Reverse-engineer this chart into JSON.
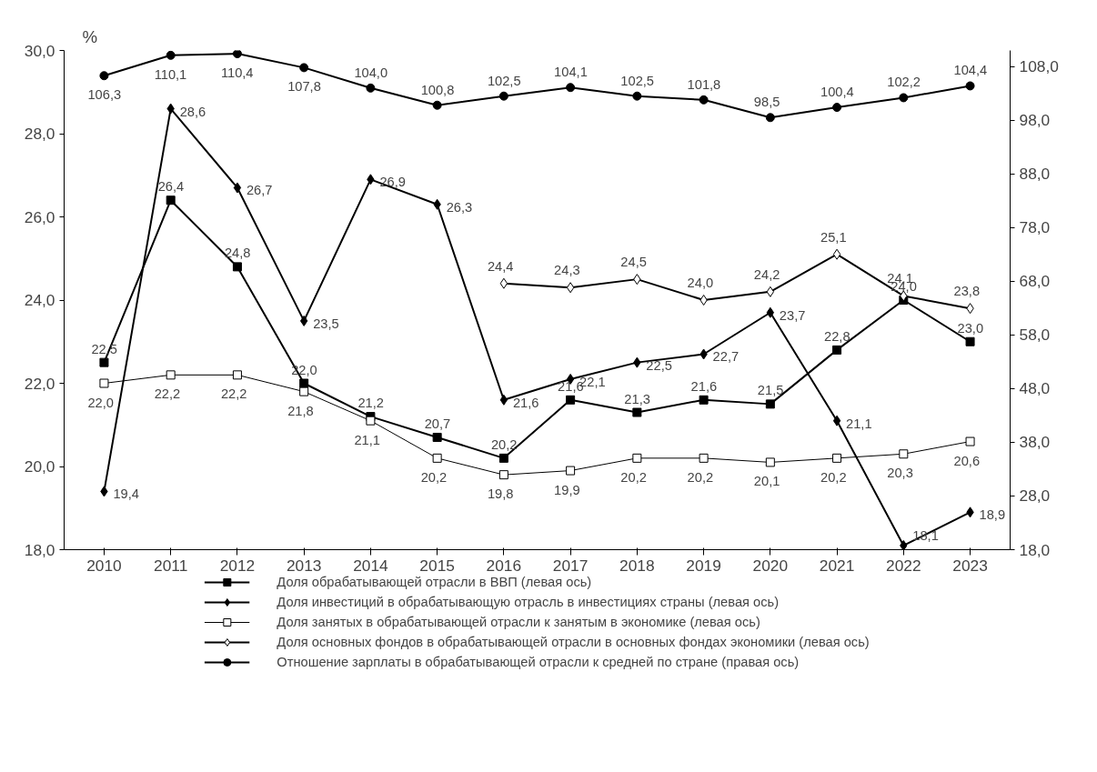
{
  "chart_data": {
    "type": "line",
    "ylabel": "%",
    "categories": [
      "2010",
      "2011",
      "2012",
      "2013",
      "2014",
      "2015",
      "2016",
      "2017",
      "2018",
      "2019",
      "2020",
      "2021",
      "2022",
      "2023"
    ],
    "ylim": [
      18,
      30
    ],
    "yticks": [
      {
        "value": 18,
        "label": "18,0"
      },
      {
        "value": 20,
        "label": "20,0"
      },
      {
        "value": 22,
        "label": "22,0"
      },
      {
        "value": 24,
        "label": "24,0"
      },
      {
        "value": 26,
        "label": "26,0"
      },
      {
        "value": 28,
        "label": "28,0"
      },
      {
        "value": 30,
        "label": "30,0"
      }
    ],
    "y2lim": [
      18,
      111
    ],
    "y2ticks": [
      {
        "value": 18,
        "label": "18,0"
      },
      {
        "value": 28,
        "label": "28,0"
      },
      {
        "value": 38,
        "label": "38,0"
      },
      {
        "value": 48,
        "label": "48,0"
      },
      {
        "value": 58,
        "label": "58,0"
      },
      {
        "value": 68,
        "label": "68,0"
      },
      {
        "value": 78,
        "label": "78,0"
      },
      {
        "value": 88,
        "label": "88,0"
      },
      {
        "value": 98,
        "label": "98,0"
      },
      {
        "value": 108,
        "label": "108,0"
      }
    ],
    "grid": false,
    "legend": "bottom",
    "line_style": "solid",
    "series": [
      {
        "name": "Доля обрабатывающей отрасли в ВВП (левая ось)",
        "color": "#000000",
        "marker": "square",
        "values": [
          22.5,
          26.4,
          24.8,
          22.0,
          21.2,
          20.7,
          20.2,
          21.6,
          21.3,
          21.6,
          21.5,
          22.8,
          24.0,
          23.0
        ],
        "value_labels": [
          "22,5",
          "26,4",
          "24,8",
          "22,0",
          "21,2",
          "20,7",
          "20,2",
          "21,6",
          "21,3",
          "21,6",
          "21,5",
          "22,8",
          "24,0",
          "23,0"
        ]
      },
      {
        "name": "Доля инвестиций в обрабатывающую отрасль в инвестициях страны (левая ось)",
        "color": "#000000",
        "marker": "diamond",
        "values": [
          19.4,
          28.6,
          26.7,
          23.5,
          26.9,
          26.3,
          21.6,
          22.1,
          22.5,
          22.7,
          23.7,
          21.1,
          18.1,
          18.9
        ],
        "value_labels": [
          "19,4",
          "28,6",
          "26,7",
          "23,5",
          "26,9",
          "26,3",
          "21,6",
          "22,1",
          "22,5",
          "22,7",
          "23,7",
          "21,1",
          "18,1",
          "18,9"
        ]
      },
      {
        "name": "Доля занятых в обрабатывающей отрасли к занятым в экономике (левая ось)",
        "color": "#000000",
        "marker": "square_open",
        "values": [
          22.0,
          22.2,
          22.2,
          21.8,
          21.1,
          20.2,
          19.8,
          19.9,
          20.2,
          20.2,
          20.1,
          20.2,
          20.3,
          20.6
        ],
        "value_labels": [
          "22,0",
          "22,2",
          "22,2",
          "21,8",
          "21,1",
          "20,2",
          "19,8",
          "19,9",
          "20,2",
          "20,2",
          "20,1",
          "20,2",
          "20,3",
          "20,6"
        ]
      },
      {
        "name": "Доля основных фондов в обрабатывающей отрасли в основных фондах экономики (левая ось)",
        "color": "#000000",
        "marker": "diamond_open",
        "values": [
          null,
          null,
          null,
          null,
          null,
          null,
          24.4,
          24.3,
          24.5,
          24.0,
          24.2,
          25.1,
          24.1,
          23.8
        ],
        "value_labels": [
          null,
          null,
          null,
          null,
          null,
          null,
          "24,4",
          "24,3",
          "24,5",
          "24,0",
          "24,2",
          "25,1",
          "24,1",
          "23,8"
        ]
      },
      {
        "name": "Отношение зарплаты в обрабатывающей отрасли к средней по стране (правая ось)",
        "color": "#000000",
        "marker": "circle",
        "axis": "y2",
        "values": [
          106.3,
          110.1,
          110.4,
          107.8,
          104.0,
          100.8,
          102.5,
          104.1,
          102.5,
          101.8,
          98.5,
          100.4,
          102.2,
          104.4
        ],
        "value_labels": [
          "106,3",
          "110,1",
          "110,4",
          "107,8",
          "104,0",
          "100,8",
          "102,5",
          "104,1",
          "102,5",
          "101,8",
          "98,5",
          "100,4",
          "102,2",
          "104,4"
        ]
      }
    ]
  }
}
